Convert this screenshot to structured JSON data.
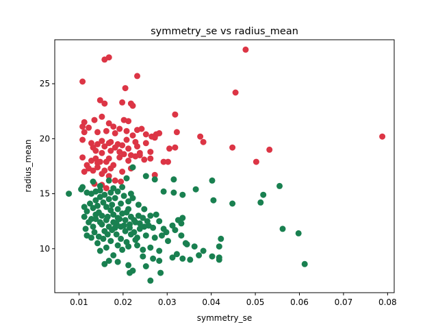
{
  "chart_data": {
    "type": "scatter",
    "title": "symmetry_se vs radius_mean",
    "xlabel": "symmetry_se",
    "ylabel": "radius_mean",
    "xlim": [
      0.0045,
      0.0815
    ],
    "ylim": [
      6.0,
      29.0
    ],
    "xticks": [
      0.01,
      0.02,
      0.03,
      0.04,
      0.05,
      0.06,
      0.07,
      0.08
    ],
    "xtick_labels": [
      "0.01",
      "0.02",
      "0.03",
      "0.04",
      "0.05",
      "0.06",
      "0.07",
      "0.08"
    ],
    "yticks": [
      10,
      15,
      20,
      25
    ],
    "ytick_labels": [
      "10",
      "15",
      "20",
      "25"
    ],
    "grid": false,
    "series": [
      {
        "color": "#dc3545",
        "points": [
          [
            0.0158,
            27.2
          ],
          [
            0.0168,
            27.4
          ],
          [
            0.0478,
            28.1
          ],
          [
            0.0108,
            25.2
          ],
          [
            0.0232,
            25.7
          ],
          [
            0.0205,
            24.6
          ],
          [
            0.0455,
            24.2
          ],
          [
            0.0148,
            23.5
          ],
          [
            0.0158,
            23.2
          ],
          [
            0.0198,
            23.3
          ],
          [
            0.0218,
            23.2
          ],
          [
            0.0222,
            23.0
          ],
          [
            0.0152,
            22.0
          ],
          [
            0.0318,
            22.2
          ],
          [
            0.0135,
            21.7
          ],
          [
            0.0168,
            21.4
          ],
          [
            0.0202,
            21.7
          ],
          [
            0.0212,
            21.6
          ],
          [
            0.0112,
            21.5
          ],
          [
            0.0108,
            21.1
          ],
          [
            0.0122,
            21.0
          ],
          [
            0.0178,
            21.1
          ],
          [
            0.0192,
            20.9
          ],
          [
            0.0232,
            20.8
          ],
          [
            0.0242,
            20.9
          ],
          [
            0.0162,
            20.7
          ],
          [
            0.0182,
            20.5
          ],
          [
            0.0208,
            20.7
          ],
          [
            0.0112,
            20.6
          ],
          [
            0.0142,
            20.6
          ],
          [
            0.0222,
            20.3
          ],
          [
            0.0252,
            20.4
          ],
          [
            0.0275,
            20.4
          ],
          [
            0.0282,
            20.5
          ],
          [
            0.0322,
            20.6
          ],
          [
            0.0108,
            19.9
          ],
          [
            0.0128,
            19.6
          ],
          [
            0.0152,
            19.8
          ],
          [
            0.0172,
            19.7
          ],
          [
            0.0188,
            19.5
          ],
          [
            0.0208,
            19.9
          ],
          [
            0.0228,
            19.7
          ],
          [
            0.0265,
            20.2
          ],
          [
            0.0272,
            20.1
          ],
          [
            0.0375,
            20.2
          ],
          [
            0.0132,
            19.2
          ],
          [
            0.0142,
            19.5
          ],
          [
            0.0158,
            19.3
          ],
          [
            0.0168,
            19.6
          ],
          [
            0.0182,
            19.2
          ],
          [
            0.0198,
            19.4
          ],
          [
            0.0212,
            19.1
          ],
          [
            0.0232,
            19.3
          ],
          [
            0.0252,
            19.6
          ],
          [
            0.0305,
            19.1
          ],
          [
            0.0318,
            19.2
          ],
          [
            0.0382,
            19.7
          ],
          [
            0.0448,
            19.2
          ],
          [
            0.0532,
            19.0
          ],
          [
            0.0788,
            20.2
          ],
          [
            0.0138,
            18.9
          ],
          [
            0.0152,
            18.7
          ],
          [
            0.0172,
            18.9
          ],
          [
            0.0192,
            18.8
          ],
          [
            0.0202,
            18.6
          ],
          [
            0.0218,
            18.5
          ],
          [
            0.0238,
            18.7
          ],
          [
            0.0262,
            18.8
          ],
          [
            0.0238,
            18.5
          ],
          [
            0.0228,
            18.4
          ],
          [
            0.0108,
            18.3
          ],
          [
            0.0128,
            18.0
          ],
          [
            0.0138,
            18.2
          ],
          [
            0.0142,
            17.8
          ],
          [
            0.0148,
            17.9
          ],
          [
            0.0162,
            17.9
          ],
          [
            0.0168,
            18.2
          ],
          [
            0.0178,
            17.6
          ],
          [
            0.0192,
            18.3
          ],
          [
            0.0212,
            18.0
          ],
          [
            0.0248,
            18.1
          ],
          [
            0.0262,
            18.2
          ],
          [
            0.0292,
            17.9
          ],
          [
            0.0302,
            17.9
          ],
          [
            0.0502,
            17.9
          ],
          [
            0.0118,
            17.6
          ],
          [
            0.0122,
            17.3
          ],
          [
            0.0132,
            17.1
          ],
          [
            0.0142,
            17.4
          ],
          [
            0.0158,
            17.1
          ],
          [
            0.0172,
            17.3
          ],
          [
            0.0198,
            17.0
          ],
          [
            0.0218,
            17.3
          ],
          [
            0.0112,
            17.0
          ],
          [
            0.0152,
            16.8
          ],
          [
            0.0168,
            16.6
          ],
          [
            0.0272,
            16.7
          ],
          [
            0.0182,
            16.2
          ],
          [
            0.0152,
            15.8
          ],
          [
            0.0162,
            15.5
          ],
          [
            0.0135,
            15.9
          ],
          [
            0.0195,
            16.1
          ]
        ]
      },
      {
        "color": "#198050",
        "points": [
          [
            0.0077,
            15.0
          ],
          [
            0.0105,
            15.4
          ],
          [
            0.0108,
            15.6
          ],
          [
            0.0118,
            15.1
          ],
          [
            0.0132,
            16.1
          ],
          [
            0.0148,
            15.7
          ],
          [
            0.0168,
            16.2
          ],
          [
            0.0178,
            15.5
          ],
          [
            0.0208,
            16.4
          ],
          [
            0.0222,
            17.4
          ],
          [
            0.0252,
            16.6
          ],
          [
            0.0272,
            16.3
          ],
          [
            0.0315,
            16.3
          ],
          [
            0.0365,
            15.4
          ],
          [
            0.0402,
            16.2
          ],
          [
            0.0292,
            15.2
          ],
          [
            0.0315,
            15.1
          ],
          [
            0.0335,
            14.9
          ],
          [
            0.0405,
            14.4
          ],
          [
            0.0448,
            14.1
          ],
          [
            0.0512,
            14.2
          ],
          [
            0.0518,
            14.9
          ],
          [
            0.0555,
            15.7
          ],
          [
            0.0562,
            11.8
          ],
          [
            0.0598,
            11.4
          ],
          [
            0.0612,
            8.6
          ],
          [
            0.0422,
            10.9
          ],
          [
            0.0418,
            10.2
          ],
          [
            0.0418,
            9.2
          ],
          [
            0.0418,
            9.0
          ],
          [
            0.0402,
            9.3
          ],
          [
            0.0382,
            9.8
          ],
          [
            0.0372,
            9.4
          ],
          [
            0.0362,
            10.2
          ],
          [
            0.0342,
            10.5
          ],
          [
            0.0332,
            11.2
          ],
          [
            0.0318,
            11.7
          ],
          [
            0.0312,
            12.1
          ],
          [
            0.0325,
            12.6
          ],
          [
            0.0335,
            12.8
          ],
          [
            0.0332,
            12.3
          ],
          [
            0.0298,
            11.5
          ],
          [
            0.0288,
            11.2
          ],
          [
            0.0282,
            12.5
          ],
          [
            0.0275,
            13.1
          ],
          [
            0.0262,
            13.0
          ],
          [
            0.0255,
            12.5
          ],
          [
            0.0248,
            12.0
          ],
          [
            0.0238,
            11.8
          ],
          [
            0.0228,
            10.8
          ],
          [
            0.0218,
            11.3
          ],
          [
            0.0208,
            10.6
          ],
          [
            0.0198,
            9.9
          ],
          [
            0.0188,
            10.3
          ],
          [
            0.0178,
            9.4
          ],
          [
            0.0168,
            8.9
          ],
          [
            0.0158,
            8.6
          ],
          [
            0.0188,
            8.8
          ],
          [
            0.0212,
            8.5
          ],
          [
            0.0222,
            8.0
          ],
          [
            0.0215,
            7.8
          ],
          [
            0.0252,
            8.4
          ],
          [
            0.0262,
            7.1
          ],
          [
            0.0285,
            7.8
          ],
          [
            0.0245,
            9.3
          ],
          [
            0.0268,
            9.1
          ],
          [
            0.0282,
            8.9
          ],
          [
            0.0312,
            9.2
          ],
          [
            0.0322,
            9.5
          ],
          [
            0.0335,
            9.1
          ],
          [
            0.0352,
            9.0
          ],
          [
            0.0232,
            10.3
          ],
          [
            0.0262,
            10.1
          ],
          [
            0.0282,
            9.8
          ],
          [
            0.0302,
            10.7
          ],
          [
            0.0345,
            10.4
          ],
          [
            0.0118,
            11.2
          ],
          [
            0.0128,
            11.0
          ],
          [
            0.0142,
            10.5
          ],
          [
            0.0148,
            9.8
          ],
          [
            0.0162,
            10.1
          ],
          [
            0.0172,
            10.7
          ],
          [
            0.0185,
            11.3
          ],
          [
            0.0195,
            10.9
          ],
          [
            0.0205,
            11.6
          ],
          [
            0.0215,
            12.2
          ],
          [
            0.0225,
            12.6
          ],
          [
            0.0235,
            13.0
          ],
          [
            0.0245,
            12.8
          ],
          [
            0.0258,
            12.1
          ],
          [
            0.0268,
            11.9
          ],
          [
            0.0122,
            12.4
          ],
          [
            0.0132,
            12.0
          ],
          [
            0.0138,
            12.7
          ],
          [
            0.0145,
            13.3
          ],
          [
            0.0152,
            12.2
          ],
          [
            0.0158,
            11.6
          ],
          [
            0.0165,
            12.9
          ],
          [
            0.0172,
            13.5
          ],
          [
            0.0178,
            12.4
          ],
          [
            0.0182,
            11.9
          ],
          [
            0.0192,
            12.7
          ],
          [
            0.0198,
            13.2
          ],
          [
            0.0202,
            12.1
          ],
          [
            0.0212,
            13.6
          ],
          [
            0.0218,
            12.9
          ],
          [
            0.0228,
            12.4
          ],
          [
            0.0112,
            13.8
          ],
          [
            0.0118,
            13.4
          ],
          [
            0.0125,
            14.1
          ],
          [
            0.0132,
            13.7
          ],
          [
            0.0138,
            14.4
          ],
          [
            0.0142,
            13.9
          ],
          [
            0.0148,
            14.7
          ],
          [
            0.0155,
            14.2
          ],
          [
            0.0162,
            13.8
          ],
          [
            0.0168,
            14.5
          ],
          [
            0.0175,
            14.0
          ],
          [
            0.0182,
            14.6
          ],
          [
            0.0188,
            13.6
          ],
          [
            0.0195,
            14.1
          ],
          [
            0.0202,
            14.8
          ],
          [
            0.0212,
            14.3
          ],
          [
            0.0222,
            14.6
          ],
          [
            0.0235,
            14.0
          ],
          [
            0.0248,
            13.6
          ],
          [
            0.0128,
            15.0
          ],
          [
            0.0138,
            15.2
          ],
          [
            0.0148,
            15.3
          ],
          [
            0.0158,
            14.9
          ],
          [
            0.0172,
            15.1
          ],
          [
            0.0188,
            15.2
          ],
          [
            0.0198,
            15.6
          ],
          [
            0.0218,
            15.0
          ],
          [
            0.0112,
            12.9
          ],
          [
            0.0115,
            11.8
          ],
          [
            0.0135,
            11.5
          ],
          [
            0.0145,
            11.1
          ],
          [
            0.0155,
            10.9
          ],
          [
            0.0165,
            11.3
          ],
          [
            0.0175,
            11.7
          ],
          [
            0.0185,
            12.3
          ],
          [
            0.0195,
            12.0
          ],
          [
            0.0205,
            12.6
          ],
          [
            0.0215,
            11.9
          ],
          [
            0.0225,
            11.5
          ],
          [
            0.0238,
            12.3
          ],
          [
            0.0152,
            13.0
          ],
          [
            0.0162,
            12.6
          ],
          [
            0.0178,
            13.1
          ],
          [
            0.0188,
            12.8
          ],
          [
            0.0208,
            13.3
          ],
          [
            0.0138,
            13.1
          ],
          [
            0.0128,
            12.7
          ],
          [
            0.0148,
            12.4
          ],
          [
            0.0168,
            12.0
          ],
          [
            0.0252,
            11.2
          ],
          [
            0.0212,
            10.2
          ],
          [
            0.0232,
            11.0
          ],
          [
            0.0245,
            9.9
          ],
          [
            0.0272,
            11.0
          ],
          [
            0.0292,
            11.8
          ]
        ]
      }
    ]
  }
}
